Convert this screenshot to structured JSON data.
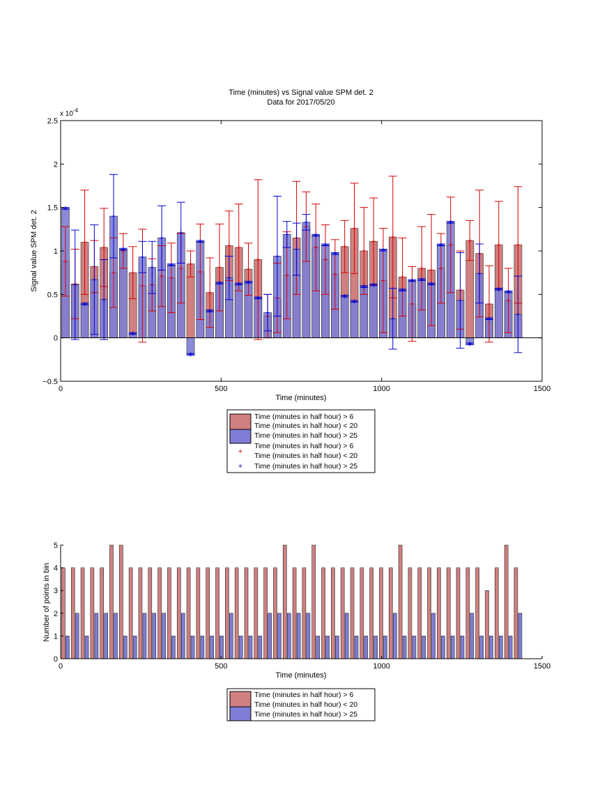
{
  "colors": {
    "red_bar": "#d08080",
    "blue_bar": "#7e7ed6",
    "red_err": "#d40000",
    "blue_err": "#0000d4"
  },
  "chart_data": [
    {
      "type": "bar",
      "title": "Time (minutes) vs Signal value SPM det. 2",
      "subtitle": "Data for 2017/05/20",
      "xlabel": "Time (minutes)",
      "ylabel": "Signal value SPM det. 2",
      "y_multiplier": "x 10",
      "y_multiplier_exp": "-4",
      "xlim": [
        0,
        1500
      ],
      "ylim": [
        -0.5,
        2.5
      ],
      "xticks": [
        "0",
        "500",
        "1000",
        "1500"
      ],
      "yticks": [
        "−0.5",
        "0",
        "0.5",
        "1",
        "1.5",
        "2",
        "2.5"
      ],
      "x": [
        15,
        45,
        75,
        105,
        135,
        165,
        195,
        225,
        255,
        285,
        315,
        345,
        375,
        405,
        435,
        465,
        495,
        525,
        555,
        585,
        615,
        645,
        675,
        705,
        735,
        765,
        795,
        825,
        855,
        885,
        915,
        945,
        975,
        1005,
        1035,
        1065,
        1095,
        1125,
        1155,
        1185,
        1215,
        1245,
        1275,
        1305,
        1335,
        1365,
        1395,
        1425
      ],
      "series": [
        {
          "name": "Time (minutes in half hour) > 6",
          "name2": "Time (minutes in half hour) < 20",
          "values": [
            0.88,
            0.62,
            1.1,
            0.82,
            1.04,
            0.75,
            1.0,
            0.75,
            0.6,
            0.61,
            0.71,
            0.69,
            0.8,
            0.85,
            0.76,
            0.52,
            0.81,
            1.06,
            1.04,
            0.79,
            0.9,
            0.25,
            0.46,
            0.72,
            1.15,
            1.28,
            1.04,
            0.9,
            0.73,
            1.05,
            1.26,
            1.0,
            1.11,
            0.66,
            1.16,
            0.7,
            0.39,
            0.8,
            0.78,
            0.8,
            1.07,
            0.55,
            1.12,
            0.97,
            0.39,
            1.07,
            0.43,
            1.07
          ],
          "err": [
            0.4,
            0.4,
            0.6,
            0.3,
            0.45,
            0.4,
            0.2,
            0.3,
            0.65,
            0.3,
            0.35,
            0.4,
            0.4,
            0.15,
            0.55,
            0.4,
            0.5,
            0.4,
            0.5,
            0.3,
            0.92,
            0.25,
            0.4,
            0.5,
            0.65,
            0.4,
            0.5,
            0.4,
            0.4,
            0.3,
            0.52,
            0.5,
            0.5,
            0.6,
            0.7,
            0.45,
            0.43,
            0.48,
            0.64,
            0.4,
            0.55,
            0.45,
            0.23,
            0.73,
            0.44,
            0.5,
            0.37,
            0.67
          ]
        },
        {
          "name": "Time (minutes in half hour) > 25",
          "values": [
            1.49,
            0.61,
            0.39,
            0.67,
            0.44,
            1.4,
            1.02,
            0.05,
            0.93,
            0.81,
            1.15,
            0.84,
            1.21,
            -0.19,
            1.11,
            0.31,
            0.63,
            0.69,
            0.62,
            0.64,
            0.46,
            0.29,
            0.94,
            1.19,
            1.02,
            1.33,
            1.18,
            1.07,
            0.97,
            0.48,
            0.42,
            0.59,
            0.61,
            1.01,
            0.22,
            0.55,
            0.66,
            0.67,
            0.62,
            1.07,
            1.33,
            0.43,
            -0.07,
            0.74,
            0.22,
            0.56,
            0.53,
            0.27
          ],
          "err": [
            0.01,
            0.63,
            0.01,
            0.63,
            0.46,
            0.48,
            0.01,
            0.01,
            0.18,
            0.3,
            0.37,
            0.01,
            0.35,
            0.01,
            0.01,
            0.01,
            0.01,
            0.25,
            0.01,
            0.01,
            0.01,
            0.21,
            0.69,
            0.15,
            0.3,
            0.09,
            0.01,
            0.01,
            0.01,
            0.01,
            0.01,
            0.01,
            0.01,
            0.01,
            0.35,
            0.01,
            0.01,
            0.01,
            0.01,
            0.01,
            0.01,
            0.55,
            0.01,
            0.34,
            0.01,
            0.01,
            0.01,
            0.44
          ]
        }
      ],
      "legend": {
        "placement": "below",
        "entries": [
          "Time (minutes in half hour) > 6",
          "Time (minutes in half hour) < 20",
          "Time (minutes in half hour) > 25",
          "Time (minutes in half hour) > 6",
          "Time (minutes in half hour) < 20",
          "Time (minutes in half hour) > 25"
        ]
      }
    },
    {
      "type": "bar",
      "title": "",
      "xlabel": "Time (minutes)",
      "ylabel": "Number of points in bin",
      "xlim": [
        0,
        1500
      ],
      "ylim": [
        0,
        5
      ],
      "xticks": [
        "0",
        "500",
        "1000",
        "1500"
      ],
      "yticks": [
        "0",
        "1",
        "2",
        "3",
        "4",
        "5"
      ],
      "x": [
        15,
        45,
        75,
        105,
        135,
        165,
        195,
        225,
        255,
        285,
        315,
        345,
        375,
        405,
        435,
        465,
        495,
        525,
        555,
        585,
        615,
        645,
        675,
        705,
        735,
        765,
        795,
        825,
        855,
        885,
        915,
        945,
        975,
        1005,
        1035,
        1065,
        1095,
        1125,
        1155,
        1185,
        1215,
        1245,
        1275,
        1305,
        1335,
        1365,
        1395,
        1425
      ],
      "series": [
        {
          "name": "Time (minutes in half hour) > 6",
          "name2": "Time (minutes in half hour) < 20",
          "values": [
            4,
            4,
            4,
            4,
            4,
            5,
            5,
            4,
            4,
            4,
            4,
            4,
            4,
            4,
            4,
            4,
            4,
            4,
            4,
            4,
            4,
            4,
            4,
            5,
            4,
            4,
            5,
            4,
            4,
            4,
            4,
            4,
            4,
            4,
            4,
            5,
            4,
            4,
            4,
            4,
            4,
            4,
            4,
            4,
            3,
            4,
            5,
            4
          ]
        },
        {
          "name": "Time (minutes in half hour) > 25",
          "values": [
            1,
            2,
            1,
            2,
            2,
            2,
            1,
            1,
            2,
            2,
            2,
            1,
            2,
            1,
            1,
            1,
            1,
            2,
            1,
            1,
            1,
            2,
            2,
            2,
            2,
            2,
            1,
            1,
            1,
            2,
            1,
            1,
            1,
            1,
            2,
            1,
            1,
            1,
            2,
            1,
            1,
            1,
            2,
            1,
            1,
            1,
            1,
            2
          ]
        }
      ],
      "legend": {
        "placement": "below",
        "entries": [
          "Time (minutes in half hour) > 6",
          "Time (minutes in half hour) < 20",
          "Time (minutes in half hour) > 25"
        ]
      }
    }
  ]
}
